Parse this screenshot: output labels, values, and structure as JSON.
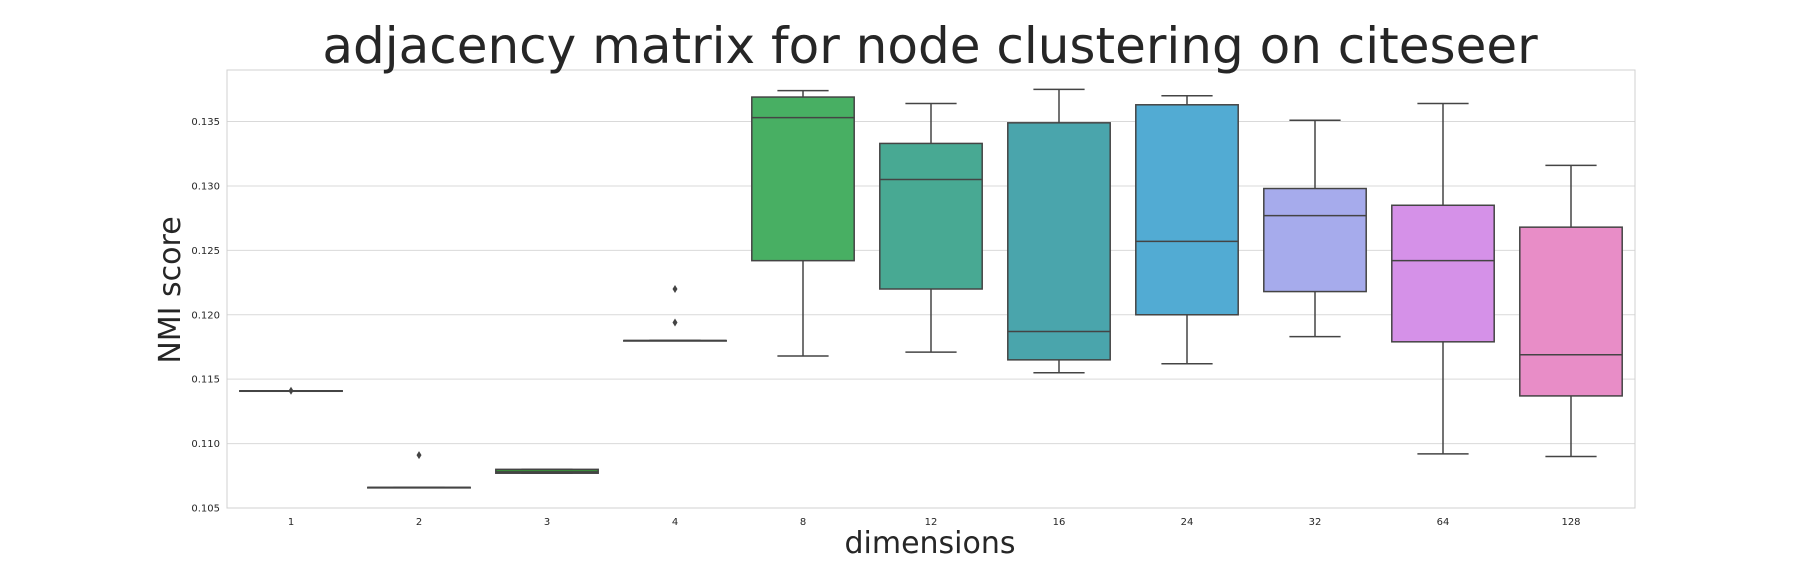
{
  "chart_data": {
    "type": "box",
    "title": "adjacency matrix for node clustering on citeseer",
    "xlabel": "dimensions",
    "ylabel": "NMI score",
    "ylim": [
      0.105,
      0.139
    ],
    "yticks": [
      "0.105",
      "0.110",
      "0.115",
      "0.120",
      "0.125",
      "0.130",
      "0.135"
    ],
    "grid": "horizontal",
    "categories": [
      "1",
      "2",
      "3",
      "4",
      "8",
      "12",
      "16",
      "24",
      "32",
      "64",
      "128"
    ],
    "boxes": [
      {
        "x": "1",
        "whislo": 0.1141,
        "q1": 0.1141,
        "med": 0.1141,
        "q3": 0.1141,
        "whishi": 0.1141,
        "fliers": [
          0.1141
        ]
      },
      {
        "x": "2",
        "whislo": 0.1066,
        "q1": 0.1066,
        "med": 0.1066,
        "q3": 0.1066,
        "whishi": 0.1066,
        "fliers": [
          0.1091
        ]
      },
      {
        "x": "3",
        "whislo": 0.1077,
        "q1": 0.1077,
        "med": 0.1078,
        "q3": 0.108,
        "whishi": 0.108,
        "fliers": []
      },
      {
        "x": "4",
        "whislo": 0.118,
        "q1": 0.118,
        "med": 0.118,
        "q3": 0.118,
        "whishi": 0.118,
        "fliers": [
          0.1194,
          0.122
        ]
      },
      {
        "x": "8",
        "whislo": 0.1168,
        "q1": 0.1242,
        "med": 0.1353,
        "q3": 0.1369,
        "whishi": 0.1374,
        "fliers": []
      },
      {
        "x": "12",
        "whislo": 0.1171,
        "q1": 0.122,
        "med": 0.1305,
        "q3": 0.1333,
        "whishi": 0.1364,
        "fliers": []
      },
      {
        "x": "16",
        "whislo": 0.1155,
        "q1": 0.1165,
        "med": 0.1187,
        "q3": 0.1349,
        "whishi": 0.1375,
        "fliers": []
      },
      {
        "x": "24",
        "whislo": 0.1162,
        "q1": 0.12,
        "med": 0.1257,
        "q3": 0.1363,
        "whishi": 0.137,
        "fliers": []
      },
      {
        "x": "32",
        "whislo": 0.1183,
        "q1": 0.1218,
        "med": 0.1277,
        "q3": 0.1298,
        "whishi": 0.1351,
        "fliers": []
      },
      {
        "x": "64",
        "whislo": 0.1092,
        "q1": 0.1179,
        "med": 0.1242,
        "q3": 0.1285,
        "whishi": 0.1364,
        "fliers": []
      },
      {
        "x": "128",
        "whislo": 0.109,
        "q1": 0.1137,
        "med": 0.1169,
        "q3": 0.1268,
        "whishi": 0.1316,
        "fliers": []
      }
    ],
    "colors": [
      "#3274a1",
      "#e1812c",
      "#3a923a",
      "#c03d3e",
      "#48af63",
      "#48a993",
      "#4aa5ac",
      "#52abd3",
      "#a6abec",
      "#d591e8",
      "#e88dc7"
    ],
    "line_color": "#444444",
    "grid_color": "#d9d9d9",
    "frame_color": "#d0d0d0"
  }
}
